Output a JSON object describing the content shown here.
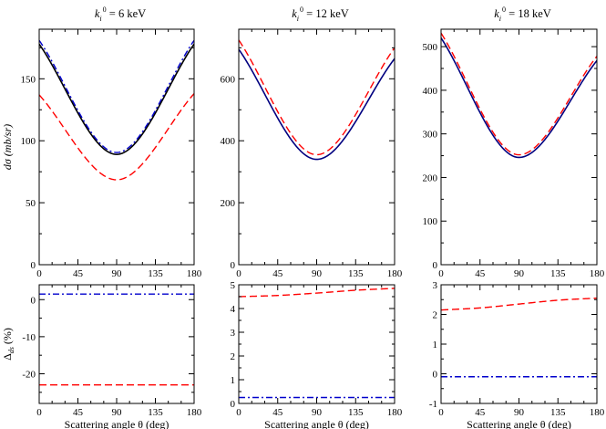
{
  "figure": {
    "x_axis_label": "Scattering angle θ (deg)",
    "top_y_label": "dσ (mb/sr)",
    "bottom_y_label_main": "Δ",
    "bottom_y_label_sub": "ds",
    "bottom_y_label_unit": " (%)"
  },
  "chart_data": [
    {
      "type": "line",
      "panel": "top-left",
      "title_k": "k",
      "title_sub": "i",
      "title_sup": "0",
      "title_value": " = 6 keV",
      "xlim": [
        0,
        180
      ],
      "ylim": [
        0,
        190
      ],
      "xticks": [
        0,
        45,
        90,
        135,
        180
      ],
      "yticks": [
        0,
        50,
        100,
        150
      ],
      "ylabel": "dσ (mb/sr)",
      "xlabel": "Scattering angle θ (deg)",
      "series": [
        {
          "name": "solid-black",
          "style": "solid",
          "color": "#000000",
          "x": [
            0,
            90,
            180
          ],
          "y": [
            178,
            89,
            178
          ]
        },
        {
          "name": "dashdot-blue",
          "style": "dashdot",
          "color": "#0000cc",
          "x": [
            0,
            90,
            180
          ],
          "y": [
            181,
            90.5,
            181
          ]
        },
        {
          "name": "dashed-red",
          "style": "dashed",
          "color": "#ff0000",
          "x": [
            0,
            90,
            180
          ],
          "y": [
            137,
            68.5,
            138
          ]
        }
      ]
    },
    {
      "type": "line",
      "panel": "top-middle",
      "title_k": "k",
      "title_sub": "i",
      "title_sup": "0",
      "title_value": " = 12 keV",
      "xlim": [
        0,
        180
      ],
      "ylim": [
        0,
        760
      ],
      "xticks": [
        0,
        45,
        90,
        135,
        180
      ],
      "yticks": [
        0,
        200,
        400,
        600
      ],
      "xlabel": "Scattering angle θ (deg)",
      "series": [
        {
          "name": "solid-blue",
          "style": "solid",
          "color": "#000080",
          "x": [
            0,
            90,
            180
          ],
          "y": [
            695,
            340,
            665
          ]
        },
        {
          "name": "dashed-red",
          "style": "dashed",
          "color": "#ff0000",
          "x": [
            0,
            90,
            180
          ],
          "y": [
            725,
            355,
            700
          ]
        }
      ]
    },
    {
      "type": "line",
      "panel": "top-right",
      "title_k": "k",
      "title_sub": "i",
      "title_sup": "0",
      "title_value": " = 18 keV",
      "xlim": [
        0,
        180
      ],
      "ylim": [
        0,
        540
      ],
      "xticks": [
        0,
        45,
        90,
        135,
        180
      ],
      "yticks": [
        0,
        100,
        200,
        300,
        400,
        500
      ],
      "xlabel": "Scattering angle θ (deg)",
      "series": [
        {
          "name": "solid-blue",
          "style": "solid",
          "color": "#000080",
          "x": [
            0,
            90,
            180
          ],
          "y": [
            520,
            246,
            468
          ]
        },
        {
          "name": "dashed-red",
          "style": "dashed",
          "color": "#ff0000",
          "x": [
            0,
            90,
            180
          ],
          "y": [
            531,
            252,
            478
          ]
        }
      ]
    },
    {
      "type": "line",
      "panel": "bottom-left",
      "xlim": [
        0,
        180
      ],
      "ylim": [
        -28,
        4
      ],
      "xticks": [
        0,
        45,
        90,
        135,
        180
      ],
      "yticks": [
        -20,
        -10,
        0
      ],
      "ylabel": "Δds (%)",
      "xlabel": "Scattering angle θ (deg)",
      "series": [
        {
          "name": "dashdot-blue",
          "style": "dashdot",
          "color": "#0000cc",
          "x": [
            0,
            180
          ],
          "y": [
            1.5,
            1.5
          ]
        },
        {
          "name": "dashed-red",
          "style": "dashed",
          "color": "#ff0000",
          "x": [
            0,
            180
          ],
          "y": [
            -23,
            -23
          ]
        }
      ]
    },
    {
      "type": "line",
      "panel": "bottom-middle",
      "xlim": [
        0,
        180
      ],
      "ylim": [
        0,
        5
      ],
      "xticks": [
        0,
        45,
        90,
        135,
        180
      ],
      "yticks": [
        0,
        1,
        2,
        3,
        4,
        5
      ],
      "xlabel": "Scattering angle θ (deg)",
      "series": [
        {
          "name": "dashdot-blue",
          "style": "dashdot",
          "color": "#0000cc",
          "x": [
            0,
            180
          ],
          "y": [
            0.25,
            0.25
          ]
        },
        {
          "name": "dashed-red",
          "style": "dashed",
          "color": "#ff0000",
          "x": [
            0,
            45,
            90,
            135,
            180
          ],
          "y": [
            4.5,
            4.55,
            4.65,
            4.77,
            4.85
          ]
        }
      ]
    },
    {
      "type": "line",
      "panel": "bottom-right",
      "xlim": [
        0,
        180
      ],
      "ylim": [
        -1,
        3
      ],
      "xticks": [
        0,
        45,
        90,
        135,
        180
      ],
      "yticks": [
        -1,
        0,
        1,
        2,
        3
      ],
      "xlabel": "Scattering angle θ (deg)",
      "series": [
        {
          "name": "dashdot-blue",
          "style": "dashdot",
          "color": "#0000cc",
          "x": [
            0,
            180
          ],
          "y": [
            -0.1,
            -0.1
          ]
        },
        {
          "name": "dashed-red",
          "style": "dashed",
          "color": "#ff0000",
          "x": [
            0,
            45,
            90,
            135,
            180
          ],
          "y": [
            2.15,
            2.22,
            2.35,
            2.48,
            2.55
          ]
        }
      ]
    }
  ]
}
